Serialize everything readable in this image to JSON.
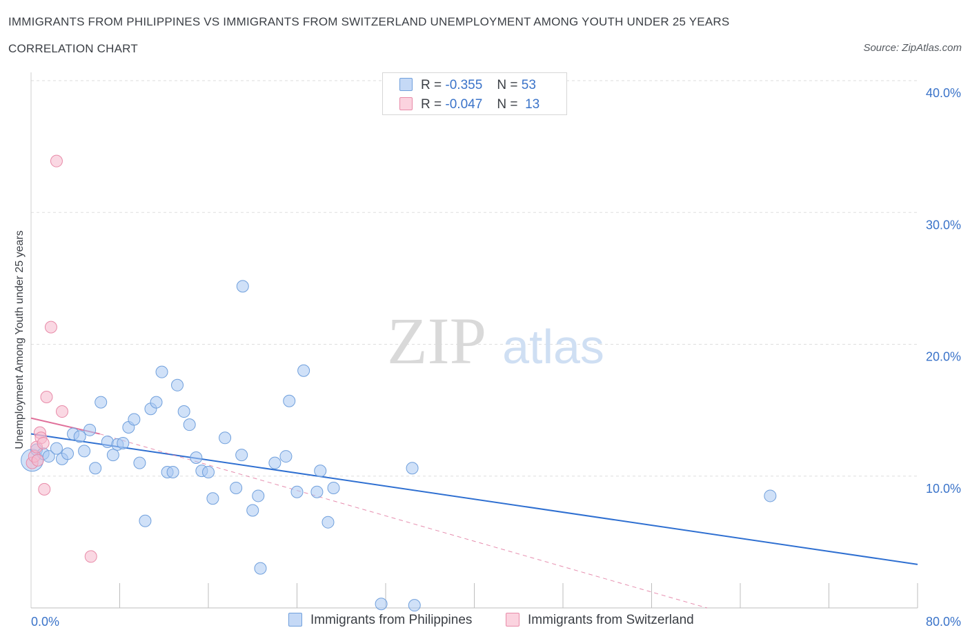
{
  "header": {
    "title": "IMMIGRANTS FROM PHILIPPINES VS IMMIGRANTS FROM SWITZERLAND UNEMPLOYMENT AMONG YOUTH UNDER 25 YEARS",
    "subtitle": "CORRELATION CHART",
    "source": "Source: ZipAtlas.com"
  },
  "watermark": {
    "zip": "ZIP",
    "atlas": "atlas"
  },
  "legend": {
    "philippines": {
      "r_label": "R =",
      "r_value": "-0.355",
      "n_label": "N =",
      "n_value": "53"
    },
    "switzerland": {
      "r_label": "R =",
      "r_value": "-0.047",
      "n_label": "N =",
      "n_value": "13"
    }
  },
  "colors": {
    "philippines_fill": "#a9c8f2",
    "philippines_stroke": "#6f9fdc",
    "philippines_line": "#2e6fd1",
    "switzerland_fill": "#f6b8cc",
    "switzerland_stroke": "#e88aa8",
    "switzerland_line": "#e0709a",
    "tick_text": "#3a73c9",
    "grid": "#dddddd"
  },
  "chart_data": {
    "type": "scatter",
    "title": "IMMIGRANTS FROM PHILIPPINES VS IMMIGRANTS FROM SWITZERLAND UNEMPLOYMENT AMONG YOUTH UNDER 25 YEARS",
    "xlabel": "",
    "ylabel": "Unemployment Among Youth under 25 years",
    "xlim": [
      0,
      80
    ],
    "ylim": [
      0,
      40
    ],
    "x_tick_labels": [
      "0.0%",
      "80.0%"
    ],
    "y_ticks": [
      10,
      20,
      30,
      40
    ],
    "y_tick_labels": [
      "10.0%",
      "20.0%",
      "30.0%",
      "40.0%"
    ],
    "series": [
      {
        "name": "Immigrants from Philippines",
        "points": [
          [
            0.1,
            11.2
          ],
          [
            0.5,
            12.0
          ],
          [
            1.1,
            11.7
          ],
          [
            1.6,
            11.5
          ],
          [
            2.3,
            12.1
          ],
          [
            2.8,
            11.3
          ],
          [
            3.3,
            11.7
          ],
          [
            3.8,
            13.2
          ],
          [
            4.4,
            13.0
          ],
          [
            4.8,
            11.9
          ],
          [
            5.3,
            13.5
          ],
          [
            5.8,
            10.6
          ],
          [
            6.3,
            15.6
          ],
          [
            6.9,
            12.6
          ],
          [
            7.4,
            11.6
          ],
          [
            7.8,
            12.4
          ],
          [
            8.3,
            12.5
          ],
          [
            8.8,
            13.7
          ],
          [
            9.3,
            14.3
          ],
          [
            9.8,
            11.0
          ],
          [
            10.3,
            6.6
          ],
          [
            10.8,
            15.1
          ],
          [
            11.3,
            15.6
          ],
          [
            11.8,
            17.9
          ],
          [
            12.3,
            10.3
          ],
          [
            12.8,
            10.3
          ],
          [
            13.2,
            16.9
          ],
          [
            13.8,
            14.9
          ],
          [
            14.3,
            13.9
          ],
          [
            14.9,
            11.4
          ],
          [
            15.4,
            10.4
          ],
          [
            16.0,
            10.3
          ],
          [
            16.4,
            8.3
          ],
          [
            17.5,
            12.9
          ],
          [
            18.5,
            9.1
          ],
          [
            19.0,
            11.6
          ],
          [
            19.1,
            24.4
          ],
          [
            20.0,
            7.4
          ],
          [
            20.5,
            8.5
          ],
          [
            20.7,
            3.0
          ],
          [
            22.0,
            11.0
          ],
          [
            23.0,
            11.5
          ],
          [
            23.3,
            15.7
          ],
          [
            24.0,
            8.8
          ],
          [
            24.6,
            18.0
          ],
          [
            25.8,
            8.8
          ],
          [
            26.1,
            10.4
          ],
          [
            26.8,
            6.5
          ],
          [
            27.3,
            9.1
          ],
          [
            31.6,
            0.3
          ],
          [
            34.4,
            10.6
          ],
          [
            34.6,
            0.2
          ],
          [
            66.7,
            8.5
          ]
        ]
      },
      {
        "name": "Immigrants from Switzerland",
        "points": [
          [
            0.1,
            11.0
          ],
          [
            0.3,
            11.5
          ],
          [
            0.5,
            12.2
          ],
          [
            0.6,
            11.2
          ],
          [
            0.8,
            13.3
          ],
          [
            0.9,
            12.9
          ],
          [
            1.1,
            12.5
          ],
          [
            1.2,
            9.0
          ],
          [
            1.4,
            16.0
          ],
          [
            1.8,
            21.3
          ],
          [
            2.3,
            33.9
          ],
          [
            2.8,
            14.9
          ],
          [
            5.4,
            3.9
          ]
        ]
      }
    ],
    "trendlines": [
      {
        "series": "Immigrants from Philippines",
        "x": [
          0,
          80
        ],
        "y": [
          13.2,
          3.3
        ],
        "style": "solid"
      },
      {
        "series": "Immigrants from Switzerland",
        "x": [
          0,
          6.2
        ],
        "y": [
          14.4,
          13.2
        ],
        "style": "solid"
      },
      {
        "series": "Immigrants from Switzerland",
        "x": [
          6.2,
          61.0
        ],
        "y": [
          13.2,
          0.0
        ],
        "style": "dashed"
      }
    ],
    "legend_position": "top-center",
    "bottom_legend": [
      "Immigrants from Philippines",
      "Immigrants from Switzerland"
    ],
    "grid": true
  }
}
